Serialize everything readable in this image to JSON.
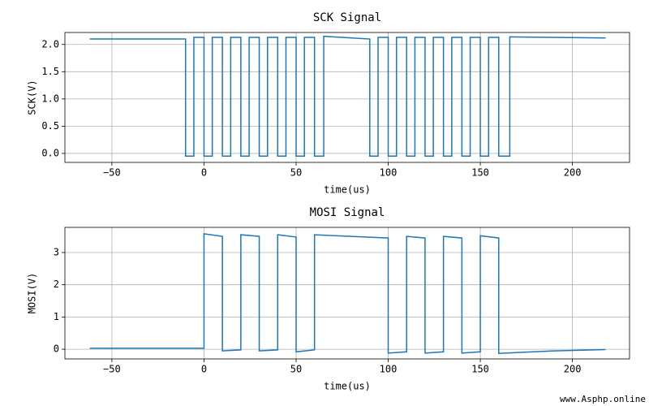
{
  "chart_data": [
    {
      "type": "line",
      "title": "SCK Signal",
      "x_label": "time(us)",
      "y_label": "SCK(V)",
      "grid": true,
      "xlim": [
        -75.5,
        231
      ],
      "ylim": [
        -0.165,
        2.22
      ],
      "xticks": [
        {
          "value": -50,
          "label": "−50"
        },
        0,
        50,
        100,
        150,
        200
      ],
      "yticks": [
        {
          "value": 0,
          "label": "0.0"
        },
        {
          "value": 0.5,
          "label": "0.5"
        },
        {
          "value": 1,
          "label": "1.0"
        },
        {
          "value": 1.5,
          "label": "1.5"
        },
        {
          "value": 2,
          "label": "2.0"
        }
      ],
      "x": [
        -62,
        -10,
        -10,
        -5.5,
        -5.5,
        0,
        0,
        4.5,
        4.5,
        10,
        10,
        14.5,
        14.5,
        20,
        20,
        24.5,
        24.5,
        30,
        30,
        34.5,
        34.5,
        40,
        40,
        44.5,
        44.5,
        50,
        50,
        54.5,
        54.5,
        60,
        60,
        65,
        65,
        90,
        90,
        94.5,
        94.5,
        100,
        100,
        104.5,
        104.5,
        110,
        110,
        114.5,
        114.5,
        120,
        120,
        124.5,
        124.5,
        130,
        130,
        134.5,
        134.5,
        140,
        140,
        144.5,
        144.5,
        150,
        150,
        154.5,
        154.5,
        160,
        160,
        166,
        166,
        218
      ],
      "series": [
        {
          "color": "#1f77b4",
          "values": [
            2.1,
            2.1,
            -0.05,
            -0.05,
            2.13,
            2.13,
            -0.05,
            -0.05,
            2.13,
            2.13,
            -0.05,
            -0.05,
            2.13,
            2.13,
            -0.05,
            -0.05,
            2.13,
            2.13,
            -0.05,
            -0.05,
            2.13,
            2.13,
            -0.05,
            -0.05,
            2.13,
            2.13,
            -0.05,
            -0.05,
            2.13,
            2.13,
            -0.05,
            -0.05,
            2.15,
            2.1,
            -0.05,
            -0.05,
            2.13,
            2.13,
            -0.05,
            -0.05,
            2.13,
            2.13,
            -0.05,
            -0.05,
            2.13,
            2.13,
            -0.05,
            -0.05,
            2.13,
            2.13,
            -0.05,
            -0.05,
            2.13,
            2.13,
            -0.05,
            -0.05,
            2.13,
            2.13,
            -0.05,
            -0.05,
            2.13,
            2.13,
            -0.05,
            -0.05,
            2.14,
            2.12
          ]
        }
      ]
    },
    {
      "type": "line",
      "title": "MOSI Signal",
      "x_label": "time(us)",
      "y_label": "MOSI(V)",
      "grid": true,
      "xlim": [
        -75.5,
        231
      ],
      "ylim": [
        -0.3,
        3.78
      ],
      "xticks": [
        {
          "value": -50,
          "label": "−50"
        },
        0,
        50,
        100,
        150,
        200
      ],
      "yticks": [
        0,
        1,
        2,
        3
      ],
      "x": [
        -62,
        0,
        0,
        10,
        10,
        20,
        20,
        30,
        30,
        40,
        40,
        50,
        50,
        60,
        60,
        100,
        100,
        110,
        110,
        120,
        120,
        130,
        130,
        140,
        140,
        150,
        150,
        160,
        160,
        190,
        218
      ],
      "series": [
        {
          "color": "#1f77b4",
          "values": [
            0.03,
            0.03,
            3.58,
            3.5,
            -0.05,
            -0.02,
            3.55,
            3.5,
            -0.05,
            -0.02,
            3.55,
            3.48,
            -0.08,
            -0.02,
            3.55,
            3.45,
            -0.12,
            -0.08,
            3.5,
            3.45,
            -0.12,
            -0.08,
            3.5,
            3.45,
            -0.12,
            -0.08,
            3.52,
            3.45,
            -0.13,
            -0.05,
            -0.01
          ]
        }
      ]
    }
  ],
  "watermark": "www.Asphp.online"
}
